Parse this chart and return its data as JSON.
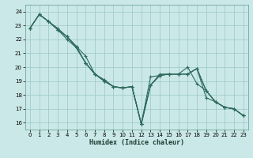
{
  "title": "",
  "xlabel": "Humidex (Indice chaleur)",
  "bg_color": "#cbe8e8",
  "grid_color": "#a0cccc",
  "line_color": "#2e6b5e",
  "xlim": [
    -0.5,
    23.5
  ],
  "ylim": [
    15.5,
    24.5
  ],
  "yticks": [
    16,
    17,
    18,
    19,
    20,
    21,
    22,
    23,
    24
  ],
  "xticks": [
    0,
    1,
    2,
    3,
    4,
    5,
    6,
    7,
    8,
    9,
    10,
    11,
    12,
    13,
    14,
    15,
    16,
    17,
    18,
    19,
    20,
    21,
    22,
    23
  ],
  "series": [
    [
      22.8,
      23.8,
      23.3,
      22.8,
      22.2,
      21.5,
      20.8,
      19.5,
      19.1,
      18.6,
      18.5,
      18.6,
      15.9,
      18.7,
      19.4,
      19.5,
      19.5,
      19.5,
      19.9,
      17.8,
      17.5,
      17.1,
      17.0,
      16.5
    ],
    [
      22.8,
      23.8,
      23.3,
      22.7,
      22.0,
      21.4,
      20.3,
      19.5,
      19.0,
      18.6,
      18.5,
      18.6,
      15.9,
      19.3,
      19.4,
      19.5,
      19.5,
      20.0,
      18.8,
      18.3,
      17.5,
      17.1,
      17.0,
      16.5
    ],
    [
      22.8,
      23.8,
      23.3,
      22.7,
      22.2,
      21.5,
      20.3,
      19.5,
      19.0,
      18.6,
      18.5,
      18.6,
      15.9,
      18.7,
      19.4,
      19.5,
      19.5,
      19.5,
      19.9,
      18.3,
      17.5,
      17.1,
      17.0,
      16.5
    ],
    [
      22.8,
      23.8,
      23.3,
      22.7,
      22.2,
      21.4,
      20.3,
      19.5,
      19.0,
      18.6,
      18.5,
      18.6,
      15.9,
      18.7,
      19.5,
      19.5,
      19.5,
      19.5,
      19.9,
      18.3,
      17.5,
      17.1,
      17.0,
      16.5
    ]
  ],
  "xlabel_fontsize": 6.0,
  "tick_fontsize": 5.0
}
